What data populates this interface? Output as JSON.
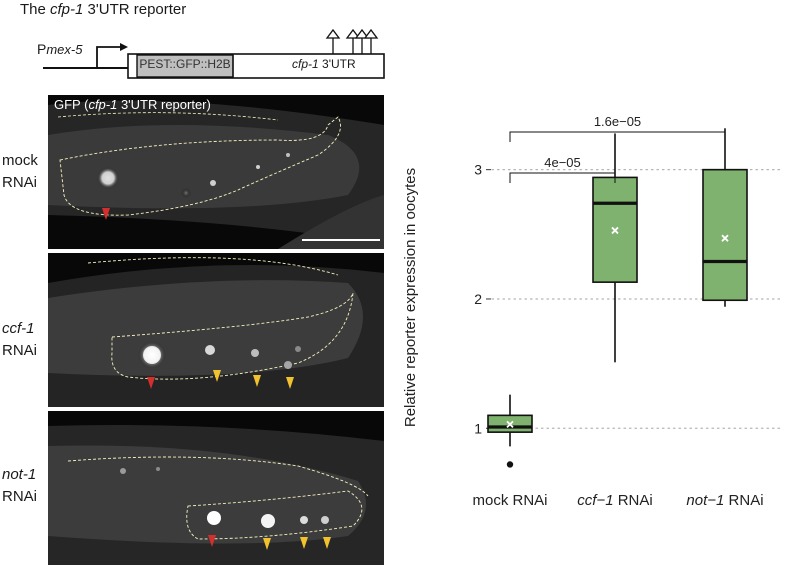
{
  "figure": {
    "title_prefix": "The ",
    "title_gene": "cfp-1",
    "title_suffix": " 3'UTR reporter"
  },
  "construct": {
    "promoter_prefix": "P",
    "promoter_name": "mex-5",
    "box1_label": "PEST::GFP::H2B",
    "box2_gene": "cfp-1",
    "box2_suffix": " 3'UTR"
  },
  "micrographs": {
    "gfp_label_prefix": "GFP (",
    "gfp_label_gene": "cfp-1",
    "gfp_label_suffix": " 3'UTR reporter)",
    "panels": [
      {
        "label_line1": "mock",
        "label_line2": "RNAi",
        "red_arrows": 1,
        "yellow_arrows": 0
      },
      {
        "label_line1": "ccf-1",
        "label_line2": "RNAi",
        "red_arrows": 1,
        "yellow_arrows": 3
      },
      {
        "label_line1": "not-1",
        "label_line2": "RNAi",
        "red_arrows": 1,
        "yellow_arrows": 3
      }
    ],
    "colors": {
      "red_arrow": "#d32f2f",
      "yellow_arrow": "#f2c12e"
    }
  },
  "chart_data": {
    "type": "box",
    "ylabel": "Relative reporter expression in oocytes",
    "ylim": [
      0.6,
      3.5
    ],
    "yticks": [
      1,
      2,
      3
    ],
    "grid": "horizontal dotted at ticks",
    "box_color": "#7fb26e",
    "categories": [
      {
        "label_pre": "mock RNAi",
        "label_italic": "",
        "label_post": ""
      },
      {
        "label_pre": "",
        "label_italic": "ccf−1",
        "label_post": " RNAi"
      },
      {
        "label_pre": "",
        "label_italic": "not−1",
        "label_post": " RNAi"
      }
    ],
    "boxes": [
      {
        "whisker_low": 0.86,
        "q1": 0.97,
        "median": 1.01,
        "q3": 1.1,
        "whisker_high": 1.26,
        "mean": 1.03,
        "outliers": [
          0.72
        ]
      },
      {
        "whisker_low": 1.51,
        "q1": 2.13,
        "median": 2.74,
        "q3": 2.94,
        "whisker_high": 3.28,
        "mean": 2.53,
        "outliers": []
      },
      {
        "whisker_low": 1.94,
        "q1": 1.99,
        "median": 2.29,
        "q3": 3.0,
        "whisker_high": 3.32,
        "mean": 2.47,
        "outliers": []
      }
    ],
    "comparisons": [
      {
        "from": 0,
        "to": 1,
        "label": "4e−05",
        "level": 1
      },
      {
        "from": 0,
        "to": 2,
        "label": "1.6e−05",
        "level": 2
      }
    ]
  }
}
